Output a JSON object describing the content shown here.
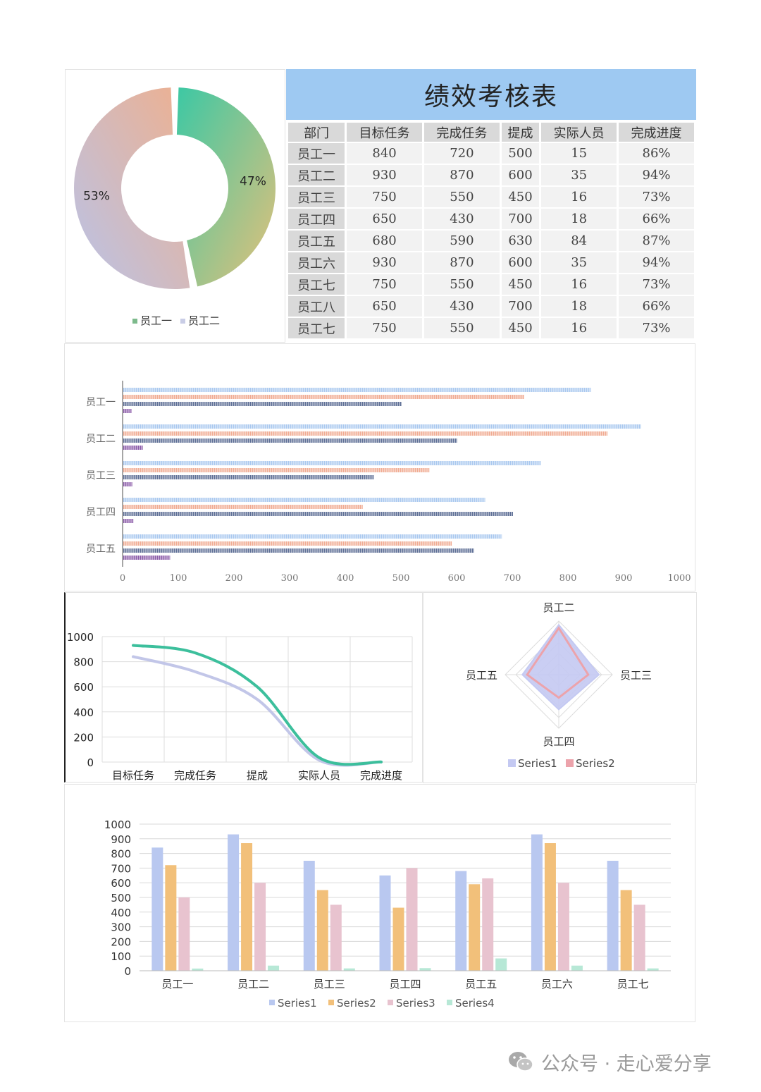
{
  "donut": {
    "slices": [
      {
        "name": "员工一",
        "value": 47,
        "label": "47%",
        "colors": [
          "#3cc8a4",
          "#e4c07a"
        ]
      },
      {
        "name": "员工二",
        "value": 53,
        "label": "53%",
        "colors": [
          "#b9c3e8",
          "#eeb08f"
        ]
      }
    ],
    "legend": [
      "员工一",
      "员工二"
    ],
    "legend_colors": [
      "#7dba8c",
      "#c9cde6"
    ]
  },
  "table": {
    "title": "绩效考核表",
    "headers": [
      "部门",
      "目标任务",
      "完成任务",
      "提成",
      "实际人员",
      "完成进度"
    ],
    "rows": [
      [
        "员工一",
        "840",
        "720",
        "500",
        "15",
        "86%"
      ],
      [
        "员工二",
        "930",
        "870",
        "600",
        "35",
        "94%"
      ],
      [
        "员工三",
        "750",
        "550",
        "450",
        "16",
        "73%"
      ],
      [
        "员工四",
        "650",
        "430",
        "700",
        "18",
        "66%"
      ],
      [
        "员工五",
        "680",
        "590",
        "630",
        "84",
        "87%"
      ],
      [
        "员工六",
        "930",
        "870",
        "600",
        "35",
        "94%"
      ],
      [
        "员工七",
        "750",
        "550",
        "450",
        "16",
        "73%"
      ],
      [
        "员工八",
        "650",
        "430",
        "700",
        "18",
        "66%"
      ],
      [
        "员工七",
        "750",
        "550",
        "450",
        "16",
        "73%"
      ]
    ]
  },
  "chart_data": [
    {
      "type": "pie",
      "categories": [
        "员工一",
        "员工二"
      ],
      "values": [
        47,
        53
      ],
      "data_labels": [
        "47%",
        "53%"
      ],
      "legend": "bottom"
    },
    {
      "type": "bar",
      "orientation": "horizontal",
      "categories": [
        "员工一",
        "员工二",
        "员工三",
        "员工四",
        "员工五"
      ],
      "series": [
        {
          "values": [
            840,
            930,
            750,
            650,
            680
          ],
          "color": "#a9c8ef"
        },
        {
          "values": [
            720,
            870,
            550,
            430,
            590
          ],
          "color": "#f0ab92"
        },
        {
          "values": [
            500,
            600,
            450,
            700,
            630
          ],
          "color": "#5e6f96"
        },
        {
          "values": [
            15,
            35,
            16,
            18,
            84
          ],
          "color": "#8a5aa8"
        }
      ],
      "xlim": [
        0,
        1000
      ],
      "xticks": [
        "0",
        "100",
        "200",
        "300",
        "400",
        "500",
        "600",
        "700",
        "800",
        "900",
        "1000"
      ]
    },
    {
      "type": "line",
      "categories": [
        "目标任务",
        "完成任务",
        "提成",
        "实际人员",
        "完成进度"
      ],
      "series": [
        {
          "values": [
            930,
            870,
            600,
            35,
            0.94
          ],
          "color": "#3cbf9c"
        },
        {
          "values": [
            840,
            720,
            500,
            15,
            0.86
          ],
          "color": "#c2c6e8"
        }
      ],
      "ylim": [
        0,
        1000
      ],
      "yticks": [
        "0",
        "200",
        "400",
        "600",
        "800",
        "1000"
      ],
      "smooth": true,
      "grid": true
    },
    {
      "type": "radar",
      "categories": [
        "员工二",
        "员工三",
        "员工四",
        "员工五"
      ],
      "series": [
        {
          "name": "Series1",
          "values": [
            930,
            750,
            650,
            680
          ],
          "color": "#c4c9f2"
        },
        {
          "name": "Series2",
          "values": [
            870,
            550,
            430,
            590
          ],
          "color": "#eca3ab"
        }
      ],
      "max": 1000,
      "legend": "bottom"
    },
    {
      "type": "bar",
      "categories": [
        "员工一",
        "员工二",
        "员工三",
        "员工四",
        "员工五",
        "员工六",
        "员工七"
      ],
      "series": [
        {
          "name": "Series1",
          "values": [
            840,
            930,
            750,
            650,
            680,
            930,
            750
          ],
          "color": "#b9c8f0"
        },
        {
          "name": "Series2",
          "values": [
            720,
            870,
            550,
            430,
            590,
            870,
            550
          ],
          "color": "#f2c07a"
        },
        {
          "name": "Series3",
          "values": [
            500,
            600,
            450,
            700,
            630,
            600,
            450
          ],
          "color": "#e8c3cf"
        },
        {
          "name": "Series4",
          "values": [
            15,
            35,
            16,
            18,
            84,
            35,
            16
          ],
          "color": "#b7e8d6"
        }
      ],
      "ylim": [
        0,
        1000
      ],
      "yticks": [
        "0",
        "100",
        "200",
        "300",
        "400",
        "500",
        "600",
        "700",
        "800",
        "900",
        "1000"
      ],
      "grid": true,
      "legend": "bottom"
    }
  ],
  "watermark": {
    "text": "公众号 · 走心爱分享"
  }
}
